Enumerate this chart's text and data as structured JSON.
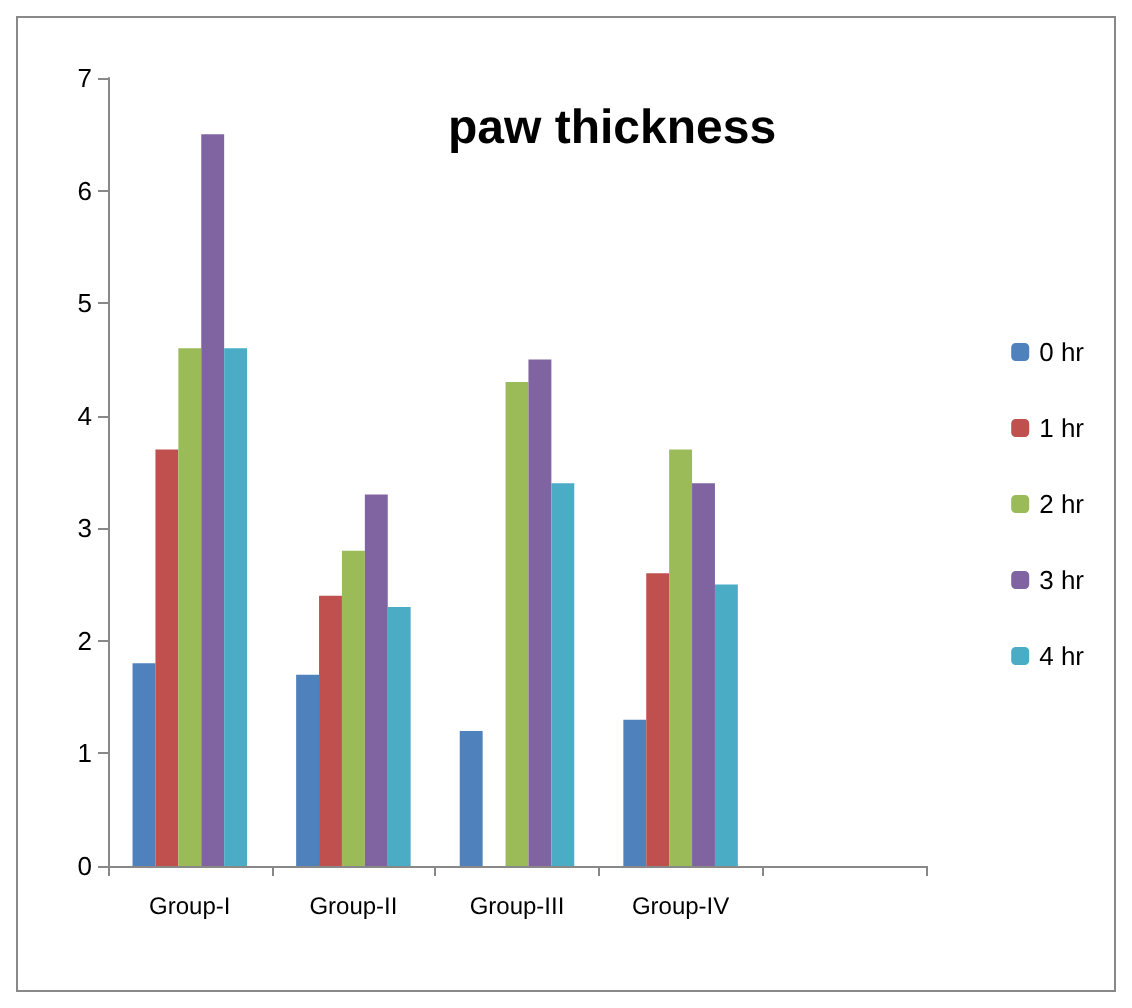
{
  "chart_data": {
    "type": "bar",
    "title": "paw thickness",
    "categories": [
      "Group-I",
      "Group-II",
      "Group-III",
      "Group-IV",
      null
    ],
    "series": [
      {
        "name": "0 hr",
        "color": "#4f81bd",
        "values": [
          1.8,
          1.7,
          1.2,
          1.3,
          null
        ]
      },
      {
        "name": "1 hr",
        "color": "#c0504d",
        "values": [
          3.7,
          2.4,
          null,
          2.6,
          null
        ]
      },
      {
        "name": "2 hr",
        "color": "#9bbb59",
        "values": [
          4.6,
          2.8,
          4.3,
          3.7,
          null
        ]
      },
      {
        "name": "3 hr",
        "color": "#8064a2",
        "values": [
          6.5,
          3.3,
          4.5,
          3.4,
          null
        ]
      },
      {
        "name": "4 hr",
        "color": "#4bacc6",
        "values": [
          4.6,
          2.3,
          3.4,
          2.5,
          null
        ]
      }
    ],
    "ylim": [
      0,
      7
    ],
    "yticks": [
      0,
      1,
      2,
      3,
      4,
      5,
      6,
      7
    ],
    "grid": false,
    "legend": "right"
  }
}
